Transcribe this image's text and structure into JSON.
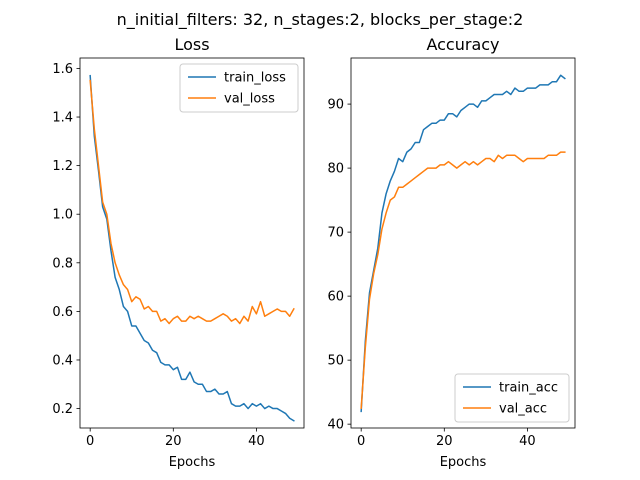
{
  "figure": {
    "suptitle": "n_initial_filters: 32, n_stages:2, blocks_per_stage:2"
  },
  "colors": {
    "train": "#1f77b4",
    "val": "#ff7f0e"
  },
  "chart_data": [
    {
      "type": "line",
      "title": "Loss",
      "xlabel": "Epochs",
      "ylabel": "",
      "xlim": [
        -2.45,
        51.45
      ],
      "ylim": [
        0.12,
        1.643
      ],
      "xticks": [
        0,
        20,
        40
      ],
      "yticks": [
        0.2,
        0.4,
        0.6,
        0.8,
        1.0,
        1.2,
        1.4,
        1.6
      ],
      "ytick_labels": [
        "0.2",
        "0.4",
        "0.6",
        "0.8",
        "1.0",
        "1.2",
        "1.4",
        "1.6"
      ],
      "legend_position": "upper right",
      "x": [
        0,
        1,
        2,
        3,
        4,
        5,
        6,
        7,
        8,
        9,
        10,
        11,
        12,
        13,
        14,
        15,
        16,
        17,
        18,
        19,
        20,
        21,
        22,
        23,
        24,
        25,
        26,
        27,
        28,
        29,
        30,
        31,
        32,
        33,
        34,
        35,
        36,
        37,
        38,
        39,
        40,
        41,
        42,
        43,
        44,
        45,
        46,
        47,
        48,
        49
      ],
      "series": [
        {
          "name": "train_loss",
          "color_key": "train",
          "values": [
            1.57,
            1.32,
            1.18,
            1.03,
            0.98,
            0.85,
            0.74,
            0.69,
            0.62,
            0.6,
            0.54,
            0.54,
            0.51,
            0.48,
            0.47,
            0.44,
            0.43,
            0.39,
            0.38,
            0.38,
            0.36,
            0.37,
            0.32,
            0.32,
            0.35,
            0.31,
            0.3,
            0.3,
            0.27,
            0.27,
            0.28,
            0.26,
            0.26,
            0.27,
            0.22,
            0.21,
            0.21,
            0.22,
            0.2,
            0.22,
            0.21,
            0.22,
            0.2,
            0.21,
            0.2,
            0.2,
            0.19,
            0.18,
            0.16,
            0.15
          ]
        },
        {
          "name": "val_loss",
          "color_key": "val",
          "values": [
            1.55,
            1.35,
            1.2,
            1.05,
            1.0,
            0.88,
            0.8,
            0.75,
            0.71,
            0.69,
            0.64,
            0.66,
            0.65,
            0.61,
            0.62,
            0.6,
            0.6,
            0.56,
            0.57,
            0.55,
            0.57,
            0.58,
            0.56,
            0.56,
            0.58,
            0.57,
            0.58,
            0.57,
            0.56,
            0.56,
            0.57,
            0.58,
            0.59,
            0.58,
            0.56,
            0.57,
            0.55,
            0.58,
            0.56,
            0.62,
            0.59,
            0.64,
            0.58,
            0.59,
            0.6,
            0.61,
            0.6,
            0.6,
            0.58,
            0.61
          ]
        }
      ]
    },
    {
      "type": "line",
      "title": "Accuracy",
      "xlabel": "Epochs",
      "ylabel": "",
      "xlim": [
        -2.45,
        51.45
      ],
      "ylim": [
        39.4,
        97.2
      ],
      "xticks": [
        0,
        20,
        40
      ],
      "yticks": [
        40,
        50,
        60,
        70,
        80,
        90
      ],
      "ytick_labels": [
        "40",
        "50",
        "60",
        "70",
        "80",
        "90"
      ],
      "legend_position": "lower right",
      "x": [
        0,
        1,
        2,
        3,
        4,
        5,
        6,
        7,
        8,
        9,
        10,
        11,
        12,
        13,
        14,
        15,
        16,
        17,
        18,
        19,
        20,
        21,
        22,
        23,
        24,
        25,
        26,
        27,
        28,
        29,
        30,
        31,
        32,
        33,
        34,
        35,
        36,
        37,
        38,
        39,
        40,
        41,
        42,
        43,
        44,
        45,
        46,
        47,
        48,
        49
      ],
      "series": [
        {
          "name": "train_acc",
          "color_key": "train",
          "values": [
            42.0,
            53.0,
            60.5,
            64.0,
            67.5,
            73.0,
            76.0,
            78.0,
            79.5,
            81.5,
            81.0,
            82.5,
            83.0,
            84.0,
            84.0,
            86.0,
            86.5,
            87.0,
            87.0,
            87.5,
            87.5,
            88.5,
            88.5,
            88.0,
            89.0,
            89.5,
            90.0,
            90.0,
            89.5,
            90.5,
            90.5,
            91.0,
            91.5,
            91.5,
            91.5,
            92.0,
            91.5,
            92.5,
            92.0,
            92.0,
            92.5,
            92.5,
            92.5,
            93.0,
            93.0,
            93.0,
            93.5,
            93.5,
            94.5,
            94.0
          ]
        },
        {
          "name": "val_acc",
          "color_key": "val",
          "values": [
            42.5,
            52.0,
            59.5,
            63.5,
            66.5,
            70.5,
            73.0,
            75.0,
            75.5,
            77.0,
            77.0,
            77.5,
            78.0,
            78.5,
            79.0,
            79.5,
            80.0,
            80.0,
            80.0,
            80.5,
            80.5,
            81.0,
            80.5,
            80.0,
            80.5,
            81.0,
            80.5,
            81.0,
            80.5,
            81.0,
            81.5,
            81.5,
            81.0,
            82.0,
            81.5,
            82.0,
            82.0,
            82.0,
            81.5,
            81.0,
            81.5,
            81.5,
            81.5,
            81.5,
            81.5,
            82.0,
            82.0,
            82.0,
            82.5,
            82.5
          ]
        }
      ]
    }
  ]
}
